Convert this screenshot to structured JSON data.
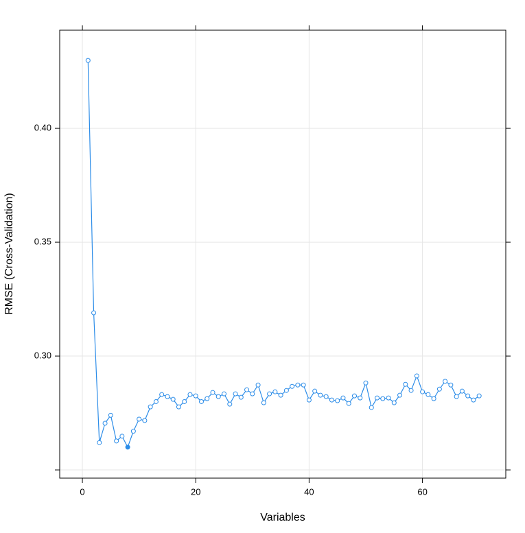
{
  "chart_data": {
    "type": "line",
    "x_label": "Variables",
    "y_label": "RMSE (Cross-Validation)",
    "x": [
      1,
      2,
      3,
      4,
      5,
      6,
      7,
      8,
      9,
      10,
      11,
      12,
      13,
      14,
      15,
      16,
      17,
      18,
      19,
      20,
      21,
      22,
      23,
      24,
      25,
      26,
      27,
      28,
      29,
      30,
      31,
      32,
      33,
      34,
      35,
      36,
      37,
      38,
      39,
      40,
      41,
      42,
      43,
      44,
      45,
      46,
      47,
      48,
      49,
      50,
      51,
      52,
      53,
      54,
      55,
      56,
      57,
      58,
      59,
      60,
      61,
      62,
      63,
      64,
      65,
      66,
      67,
      68,
      69,
      70
    ],
    "series": [
      {
        "name": "RMSE",
        "color": "#2b8ce8",
        "values": [
          0.4298,
          0.319,
          0.262,
          0.2705,
          0.274,
          0.2627,
          0.2648,
          0.26,
          0.267,
          0.2723,
          0.2717,
          0.2777,
          0.28,
          0.2831,
          0.2822,
          0.281,
          0.2777,
          0.28,
          0.2831,
          0.2825,
          0.28,
          0.2813,
          0.284,
          0.2822,
          0.2834,
          0.2789,
          0.2834,
          0.2819,
          0.2852,
          0.2834,
          0.2873,
          0.2795,
          0.2834,
          0.2843,
          0.2828,
          0.2849,
          0.2867,
          0.2873,
          0.2873,
          0.2807,
          0.2846,
          0.2828,
          0.2822,
          0.2807,
          0.2804,
          0.2816,
          0.2792,
          0.2825,
          0.2816,
          0.2882,
          0.2774,
          0.2816,
          0.2813,
          0.2816,
          0.2795,
          0.2828,
          0.2876,
          0.2849,
          0.2913,
          0.2843,
          0.2831,
          0.2813,
          0.2855,
          0.2889,
          0.2873,
          0.2822,
          0.2846,
          0.2825,
          0.2807,
          0.2825
        ]
      }
    ],
    "highlight_x": 8,
    "xlim": [
      -4,
      74.7
    ],
    "ylim": [
      0.2464,
      0.4431
    ],
    "xticks": [
      0,
      20,
      40,
      60
    ],
    "yticks": [
      {
        "value": 0.25,
        "label": null
      },
      {
        "value": 0.3,
        "label": "0.30"
      },
      {
        "value": 0.35,
        "label": "0.35"
      },
      {
        "value": 0.4,
        "label": "0.40"
      }
    ],
    "grid": true
  }
}
